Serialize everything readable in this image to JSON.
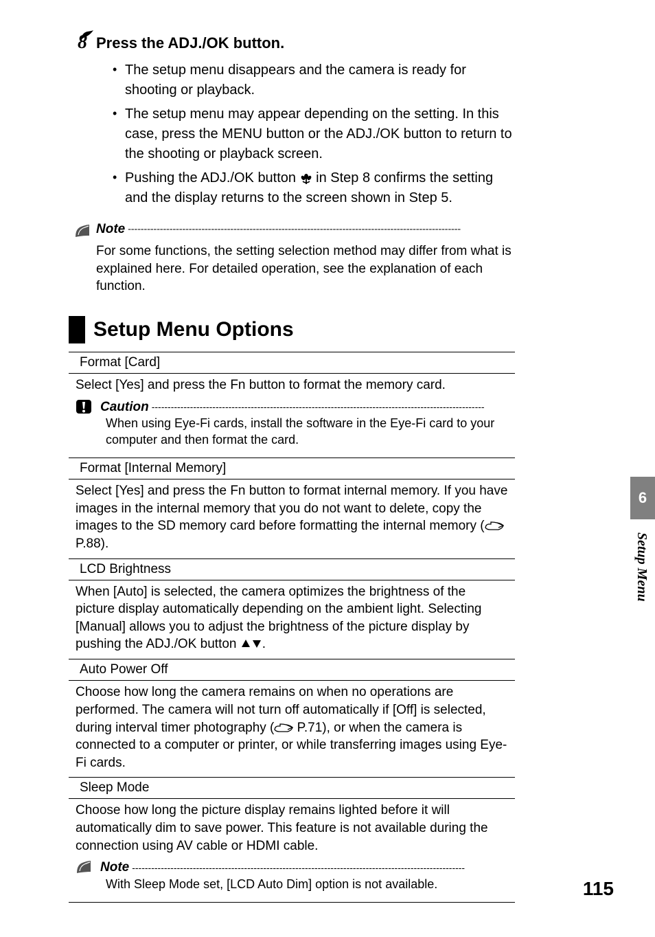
{
  "step": {
    "number": "8",
    "title": "Press the ADJ./OK button.",
    "bullets": [
      "The setup menu disappears and the camera is ready for shooting or playback.",
      "The setup menu may appear depending on the setting. In this case, press the MENU button or the ADJ./OK button to return to the shooting or playback screen.",
      "Pushing the ADJ./OK button |MACRO| in Step 8 confirms the setting and the display returns to the screen shown in Step 5."
    ]
  },
  "note1": {
    "label": "Note",
    "body": "For some functions, the setting selection method may differ from what is explained here. For detailed operation, see the explanation of each function."
  },
  "section_title": "Setup Menu Options",
  "options": [
    {
      "title": "Format [Card]",
      "body": "Select [Yes] and press the Fn button to format the memory card.",
      "caution": {
        "label": "Caution",
        "body": "When using Eye-Fi cards, install the software in the Eye-Fi card to your computer and then format the card."
      }
    },
    {
      "title": "Format [Internal Memory]",
      "body": "Select [Yes] and press the Fn button to format internal memory. If you have images in the internal memory that you do not want to delete, copy the images to the SD memory card before formatting the internal memory (|REF| P.88)."
    },
    {
      "title": "LCD Brightness",
      "body": "When [Auto] is selected, the camera optimizes the brightness of the picture display automatically depending on the ambient light. Selecting [Manual] allows you to adjust the brightness of the picture display by pushing the ADJ./OK button |TRI|."
    },
    {
      "title": "Auto Power Off",
      "body": "Choose how long the camera remains on when no operations are performed. The camera will not turn off automatically if [Off] is selected, during interval timer photography (|REF| P.71), or when the camera is connected to a computer or printer, or while transferring images using Eye-Fi cards."
    },
    {
      "title": "Sleep Mode",
      "body": "Choose how long the picture display remains lighted before it will automatically dim to save power. This feature is not available during the connection using AV cable or HDMI cable.",
      "note": {
        "label": "Note",
        "body": "With Sleep Mode set, [LCD Auto Dim] option is not available."
      }
    }
  ],
  "side": {
    "chapter": "6",
    "label": "Setup Menu"
  },
  "page_number": "115",
  "dashes": "--------------------------------------------------------------------------------------------------------"
}
